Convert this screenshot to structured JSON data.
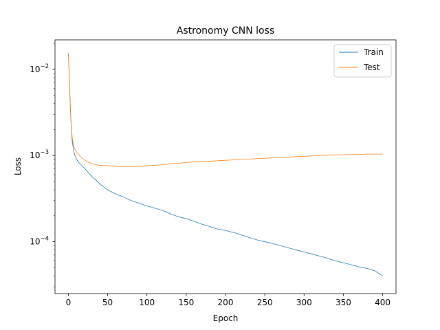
{
  "chart_data": {
    "type": "line",
    "title": "Astronomy CNN loss",
    "xlabel": "Epoch",
    "ylabel": "Loss",
    "xlim": [
      -17,
      417
    ],
    "ylim": [
      2.5e-05,
      0.022
    ],
    "yscale": "log",
    "grid": false,
    "legend_position": "top-right",
    "xticks": [
      0,
      50,
      100,
      150,
      200,
      250,
      300,
      350,
      400
    ],
    "yticks": [
      {
        "value": 0.01,
        "base": "10",
        "exp": "−2"
      },
      {
        "value": 0.001,
        "base": "10",
        "exp": "−3"
      },
      {
        "value": 0.0001,
        "base": "10",
        "exp": "−4"
      }
    ],
    "series": [
      {
        "name": "Train",
        "color": "#1f77b4",
        "points": [
          [
            0,
            0.0155
          ],
          [
            1,
            0.009
          ],
          [
            2,
            0.005
          ],
          [
            3,
            0.0028
          ],
          [
            4,
            0.0019
          ],
          [
            5,
            0.00145
          ],
          [
            6,
            0.00125
          ],
          [
            7,
            0.00112
          ],
          [
            8,
            0.00102
          ],
          [
            10,
            0.00092
          ],
          [
            12,
            0.00086
          ],
          [
            15,
            0.0008
          ],
          [
            20,
            0.00072
          ],
          [
            25,
            0.00064
          ],
          [
            30,
            0.00057
          ],
          [
            35,
            0.00052
          ],
          [
            40,
            0.00047
          ],
          [
            50,
            0.0004
          ],
          [
            60,
            0.00036
          ],
          [
            70,
            0.00033
          ],
          [
            80,
            0.0003
          ],
          [
            90,
            0.00028
          ],
          [
            100,
            0.00026
          ],
          [
            110,
            0.000245
          ],
          [
            120,
            0.00023
          ],
          [
            130,
            0.00021
          ],
          [
            140,
            0.000195
          ],
          [
            150,
            0.000185
          ],
          [
            160,
            0.000172
          ],
          [
            170,
            0.00016
          ],
          [
            180,
            0.00015
          ],
          [
            190,
            0.00014
          ],
          [
            200,
            0.000135
          ],
          [
            210,
            0.000128
          ],
          [
            220,
            0.00012
          ],
          [
            230,
            0.000112
          ],
          [
            240,
            0.000105
          ],
          [
            250,
            0.0001
          ],
          [
            260,
            9.5e-05
          ],
          [
            270,
            9e-05
          ],
          [
            280,
            8.5e-05
          ],
          [
            290,
            8e-05
          ],
          [
            300,
            7.6e-05
          ],
          [
            310,
            7.2e-05
          ],
          [
            320,
            6.8e-05
          ],
          [
            330,
            6.4e-05
          ],
          [
            340,
            6e-05
          ],
          [
            350,
            5.7e-05
          ],
          [
            360,
            5.4e-05
          ],
          [
            370,
            5.1e-05
          ],
          [
            380,
            4.9e-05
          ],
          [
            390,
            4.6e-05
          ],
          [
            400,
            4e-05
          ]
        ]
      },
      {
        "name": "Test",
        "color": "#ff7f0e",
        "points": [
          [
            0,
            0.0155
          ],
          [
            1,
            0.009
          ],
          [
            2,
            0.005
          ],
          [
            3,
            0.0029
          ],
          [
            4,
            0.002
          ],
          [
            5,
            0.0016
          ],
          [
            6,
            0.0014
          ],
          [
            7,
            0.00128
          ],
          [
            8,
            0.0012
          ],
          [
            10,
            0.00112
          ],
          [
            12,
            0.00105
          ],
          [
            15,
            0.00098
          ],
          [
            20,
            0.0009
          ],
          [
            25,
            0.00084
          ],
          [
            30,
            0.0008
          ],
          [
            40,
            0.00077
          ],
          [
            50,
            0.00076
          ],
          [
            60,
            0.00075
          ],
          [
            70,
            0.00074
          ],
          [
            80,
            0.00074
          ],
          [
            90,
            0.00075
          ],
          [
            100,
            0.00076
          ],
          [
            110,
            0.00077
          ],
          [
            120,
            0.00078
          ],
          [
            130,
            0.0008
          ],
          [
            140,
            0.00081
          ],
          [
            150,
            0.00083
          ],
          [
            160,
            0.00084
          ],
          [
            170,
            0.00085
          ],
          [
            180,
            0.00086
          ],
          [
            190,
            0.00087
          ],
          [
            200,
            0.00088
          ],
          [
            210,
            0.00089
          ],
          [
            220,
            0.0009
          ],
          [
            230,
            0.00091
          ],
          [
            240,
            0.00092
          ],
          [
            250,
            0.00093
          ],
          [
            260,
            0.00094
          ],
          [
            270,
            0.00095
          ],
          [
            280,
            0.00096
          ],
          [
            290,
            0.00097
          ],
          [
            300,
            0.00098
          ],
          [
            310,
            0.00099
          ],
          [
            320,
            0.001
          ],
          [
            330,
            0.00101
          ],
          [
            340,
            0.00102
          ],
          [
            350,
            0.00102
          ],
          [
            360,
            0.00103
          ],
          [
            370,
            0.00103
          ],
          [
            380,
            0.00104
          ],
          [
            390,
            0.00104
          ],
          [
            400,
            0.00104
          ]
        ]
      }
    ]
  }
}
